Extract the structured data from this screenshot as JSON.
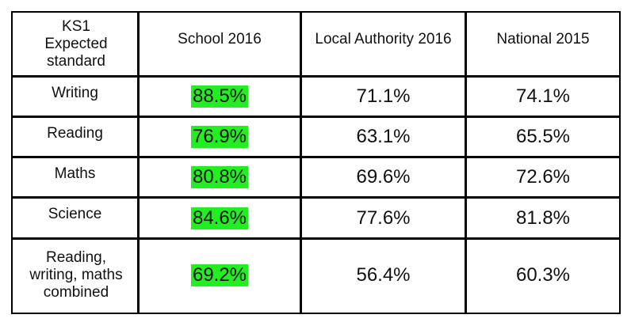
{
  "table": {
    "headers": [
      "KS1 Expected standard",
      "School 2016",
      "Local Authority 2016",
      "National 2015"
    ],
    "rows": [
      {
        "label": "Writing",
        "school_2016": "88.5%",
        "local_authority_2016": "71.1%",
        "national_2015": "74.1%"
      },
      {
        "label": "Reading",
        "school_2016": "76.9%",
        "local_authority_2016": "63.1%",
        "national_2015": "65.5%"
      },
      {
        "label": "Maths",
        "school_2016": "80.8%",
        "local_authority_2016": "69.6%",
        "national_2015": "72.6%"
      },
      {
        "label": "Science",
        "school_2016": "84.6%",
        "local_authority_2016": "77.6%",
        "national_2015": "81.8%"
      },
      {
        "label": "Reading, writing, maths combined",
        "school_2016": "69.2%",
        "local_authority_2016": "56.4%",
        "national_2015": "60.3%"
      }
    ]
  },
  "colors": {
    "highlight": "#22ee22",
    "border": "#000000"
  }
}
